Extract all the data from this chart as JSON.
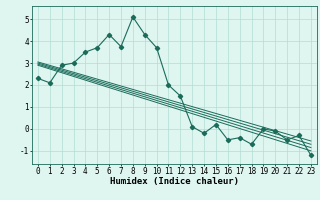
{
  "x": [
    0,
    1,
    2,
    3,
    4,
    5,
    6,
    7,
    8,
    9,
    10,
    11,
    12,
    13,
    14,
    15,
    16,
    17,
    18,
    19,
    20,
    21,
    22,
    23
  ],
  "y_main": [
    2.3,
    2.1,
    2.9,
    3.0,
    3.5,
    3.7,
    4.3,
    3.75,
    5.1,
    4.3,
    3.7,
    2.0,
    1.5,
    0.1,
    -0.2,
    0.2,
    -0.5,
    -0.4,
    -0.7,
    0.0,
    -0.1,
    -0.5,
    -0.3,
    -1.2
  ],
  "regression_lines": [
    {
      "x0": 0,
      "y0": 2.9,
      "x1": 23,
      "y1": -1.0
    },
    {
      "x0": 0,
      "y0": 2.95,
      "x1": 23,
      "y1": -0.85
    },
    {
      "x0": 0,
      "y0": 3.0,
      "x1": 23,
      "y1": -0.7
    },
    {
      "x0": 0,
      "y0": 3.05,
      "x1": 23,
      "y1": -0.55
    }
  ],
  "xlim": [
    -0.5,
    23.5
  ],
  "ylim": [
    -1.6,
    5.6
  ],
  "yticks": [
    -1,
    0,
    1,
    2,
    3,
    4,
    5
  ],
  "xticks": [
    0,
    1,
    2,
    3,
    4,
    5,
    6,
    7,
    8,
    9,
    10,
    11,
    12,
    13,
    14,
    15,
    16,
    17,
    18,
    19,
    20,
    21,
    22,
    23
  ],
  "xlabel": "Humidex (Indice chaleur)",
  "line_color": "#1a6b5a",
  "bg_color": "#dff5f0",
  "grid_color": "#b0ddd4",
  "marker": "D",
  "marker_size": 2.2,
  "xlabel_fontsize": 6.5,
  "tick_fontsize": 5.5
}
